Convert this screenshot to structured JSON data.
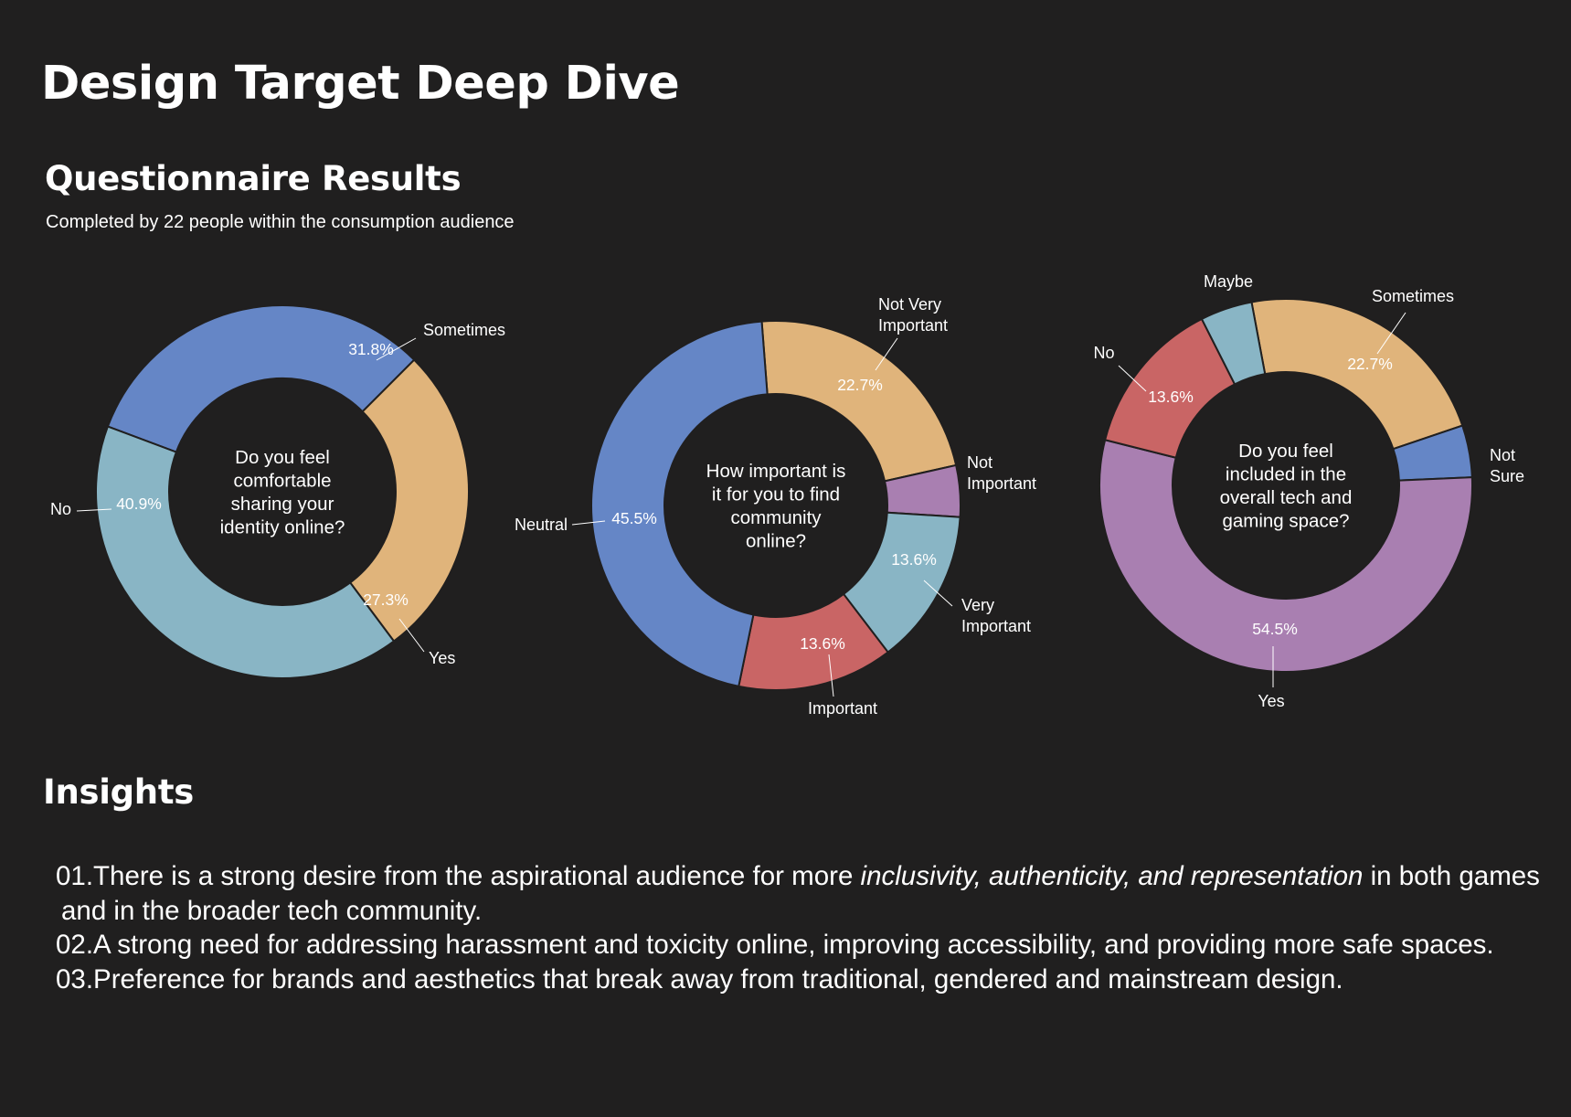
{
  "header": {
    "title": "Design Target Deep Dive",
    "section_title": "Questionnaire Results",
    "subtitle": "Completed by 22 people within the consumption audience"
  },
  "colors": {
    "background": "#201f1f",
    "blue": "#6586c6",
    "tan": "#e0b47b",
    "light_blue": "#89b5c5",
    "red": "#c96565",
    "purple": "#a97fb1"
  },
  "chart_data": [
    {
      "type": "pie",
      "variant": "donut",
      "title": "Do you feel comfortable sharing your identity online?",
      "center_lines": [
        "Do you feel",
        "comfortable",
        "sharing your",
        "identity online?"
      ],
      "categories": [
        "Sometimes",
        "Yes",
        "No"
      ],
      "values": [
        31.8,
        27.3,
        40.9
      ],
      "value_labels": [
        "31.8%",
        "27.3%",
        "40.9%"
      ],
      "colors": [
        "#6586c6",
        "#e0b47b",
        "#89b5c5"
      ]
    },
    {
      "type": "pie",
      "variant": "donut",
      "title": "How important is it for you to find community online?",
      "center_lines": [
        "How important is",
        "it for you to find",
        "community",
        "online?"
      ],
      "categories": [
        "Not Very Important",
        "Not Important",
        "Very Important",
        "Important",
        "Neutral"
      ],
      "category_lines": [
        [
          "Not Very",
          "Important"
        ],
        [
          "Not",
          "Important"
        ],
        [
          "Very",
          "Important"
        ],
        [
          "Important"
        ],
        [
          "Neutral"
        ]
      ],
      "values": [
        22.7,
        4.5,
        13.6,
        13.6,
        45.5
      ],
      "value_labels": [
        "22.7%",
        "",
        "13.6%",
        "13.6%",
        "45.5%"
      ],
      "colors": [
        "#e0b47b",
        "#a97fb1",
        "#89b5c5",
        "#c96565",
        "#6586c6"
      ]
    },
    {
      "type": "pie",
      "variant": "donut",
      "title": "Do you feel included in the overall tech and gaming space?",
      "center_lines": [
        "Do you feel",
        "included in the",
        "overall tech and",
        "gaming space?"
      ],
      "categories": [
        "Sometimes",
        "Not Sure",
        "Yes",
        "No",
        "Maybe"
      ],
      "category_lines": [
        [
          "Sometimes"
        ],
        [
          "Not",
          "Sure"
        ],
        [
          "Yes"
        ],
        [
          "No"
        ],
        [
          "Maybe"
        ]
      ],
      "values": [
        22.7,
        4.5,
        54.5,
        13.6,
        4.5
      ],
      "value_labels": [
        "22.7%",
        "",
        "54.5%",
        "13.6%",
        ""
      ],
      "colors": [
        "#e0b47b",
        "#6586c6",
        "#a97fb1",
        "#c96565",
        "#89b5c5"
      ]
    }
  ],
  "insights": {
    "title": "Insights",
    "items": [
      {
        "num": "01.",
        "before": "There is a strong desire from the aspirational audience for more ",
        "em": "inclusivity, authenticity, and representation",
        "after": " in both games and in the broader tech community."
      },
      {
        "num": "02.",
        "before": "A strong need for addressing harassment and toxicity online, improving accessibility, and providing more safe spaces.",
        "em": "",
        "after": ""
      },
      {
        "num": "03.",
        "before": "Preference for brands and aesthetics that break away from traditional, gendered and mainstream design.",
        "em": "",
        "after": ""
      }
    ]
  }
}
